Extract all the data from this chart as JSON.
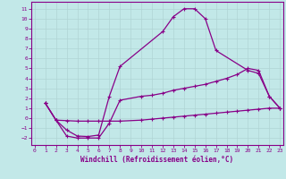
{
  "xlabel": "Windchill (Refroidissement éolien,°C)",
  "xlim": [
    -0.3,
    23.3
  ],
  "ylim": [
    -2.7,
    11.7
  ],
  "xticks": [
    0,
    1,
    2,
    3,
    4,
    5,
    6,
    7,
    8,
    9,
    10,
    11,
    12,
    13,
    14,
    15,
    16,
    17,
    18,
    19,
    20,
    21,
    22,
    23
  ],
  "yticks": [
    -2,
    -1,
    0,
    1,
    2,
    3,
    4,
    5,
    6,
    7,
    8,
    9,
    10,
    11
  ],
  "bg_color": "#c2e8e8",
  "line_color": "#880088",
  "grid_color": "#aacccc",
  "curve1_x": [
    1,
    2,
    3,
    4,
    5,
    6,
    7,
    8,
    12,
    13,
    14,
    15,
    16,
    17,
    20,
    21,
    22,
    23
  ],
  "curve1_y": [
    1.5,
    -0.2,
    -1.2,
    -1.8,
    -1.85,
    -1.7,
    2.2,
    5.2,
    8.7,
    10.2,
    11.0,
    11.0,
    10.0,
    6.8,
    4.8,
    4.5,
    2.2,
    1.0
  ],
  "curve2_x": [
    1,
    2,
    3,
    4,
    5,
    6,
    7,
    8,
    10,
    11,
    12,
    13,
    14,
    15,
    16,
    17,
    18,
    19,
    20,
    21,
    22,
    23
  ],
  "curve2_y": [
    1.5,
    -0.2,
    -1.8,
    -2.0,
    -2.0,
    -2.0,
    -0.5,
    1.8,
    2.2,
    2.3,
    2.5,
    2.8,
    3.0,
    3.2,
    3.4,
    3.7,
    4.0,
    4.4,
    5.0,
    4.8,
    2.2,
    1.0
  ],
  "curve3_x": [
    1,
    2,
    3,
    4,
    5,
    6,
    7,
    8,
    10,
    11,
    12,
    13,
    14,
    15,
    16,
    17,
    18,
    19,
    20,
    21,
    22,
    23
  ],
  "curve3_y": [
    1.5,
    -0.2,
    -0.25,
    -0.3,
    -0.3,
    -0.3,
    -0.3,
    -0.3,
    -0.2,
    -0.1,
    0.0,
    0.1,
    0.2,
    0.3,
    0.4,
    0.5,
    0.6,
    0.7,
    0.8,
    0.9,
    1.0,
    1.0
  ]
}
